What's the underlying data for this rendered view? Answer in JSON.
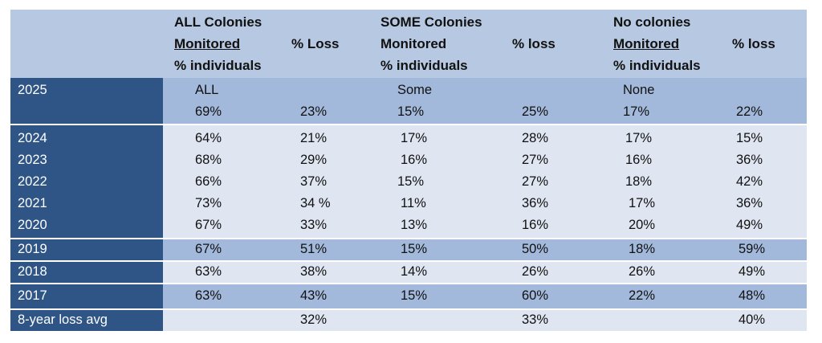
{
  "header": {
    "all_title": "ALL Colonies",
    "all_sub": "Monitored",
    "all_ind": "% individuals",
    "all_loss": "% Loss",
    "some_title": "SOME Colonies",
    "some_sub": "Monitored",
    "some_ind": "% individuals",
    "some_loss": "% loss",
    "none_title": "No colonies",
    "none_sub": "Monitored",
    "none_ind": "% individuals",
    "none_loss": "% loss"
  },
  "row2025": {
    "year": "2025",
    "labels": [
      "ALL",
      "Some",
      "None"
    ],
    "values": [
      "69%",
      "23%",
      "15%",
      "25%",
      "17%",
      "22%"
    ]
  },
  "rows": [
    {
      "year": "2024",
      "values": [
        "64%",
        "21%",
        "17%",
        "28%",
        "17%",
        "15%"
      ]
    },
    {
      "year": "2023",
      "values": [
        "68%",
        "29%",
        "16%",
        "27%",
        "16%",
        "36%"
      ]
    },
    {
      "year": "2022",
      "values": [
        "66%",
        "37%",
        "15%",
        "27%",
        "18%",
        "42%"
      ]
    },
    {
      "year": "2021",
      "values": [
        "73%",
        "34 %",
        "11%",
        "36%",
        "17%",
        "36%"
      ]
    },
    {
      "year": "2020",
      "values": [
        "67%",
        "33%",
        "13%",
        "16%",
        "20%",
        "49%"
      ]
    },
    {
      "year": "2019",
      "values": [
        "67%",
        "51%",
        "15%",
        "50%",
        "18%",
        "59%"
      ]
    },
    {
      "year": "2018",
      "values": [
        "63%",
        "38%",
        "14%",
        "26%",
        "26%",
        "49%"
      ]
    },
    {
      "year": "2017",
      "values": [
        "63%",
        "43%",
        "15%",
        "60%",
        "22%",
        "48%"
      ]
    }
  ],
  "avg": {
    "label": "8-year loss  avg",
    "values": [
      "32%",
      "33%",
      "40%"
    ]
  }
}
